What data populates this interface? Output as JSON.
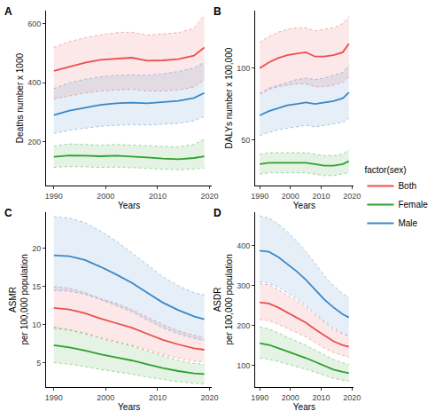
{
  "chart_data": [
    {
      "type": "line",
      "title": "A",
      "x_label": "Years",
      "y_label": "Deaths number x 1000",
      "x": [
        1990,
        1993,
        1996,
        1999,
        2002,
        2005,
        2008,
        2011,
        2014,
        2017,
        2019
      ],
      "xlim": [
        1988.5,
        2020.5
      ],
      "xticks": [
        1990,
        2000,
        2010,
        2020
      ],
      "ylim": [
        50,
        645
      ],
      "yticks": [
        200,
        400,
        600
      ],
      "grid": false,
      "series": [
        {
          "name": "Both",
          "color": "#E8504E",
          "values": [
            440,
            455,
            468,
            478,
            482,
            485,
            475,
            476,
            480,
            492,
            520
          ],
          "lower": [
            345,
            355,
            365,
            372,
            375,
            378,
            372,
            372,
            375,
            385,
            410
          ],
          "upper": [
            520,
            540,
            553,
            563,
            570,
            572,
            562,
            565,
            570,
            585,
            630
          ]
        },
        {
          "name": "Female",
          "color": "#2EA02E",
          "values": [
            148,
            153,
            152,
            150,
            152,
            150,
            146,
            142,
            140,
            144,
            150
          ],
          "lower": [
            112,
            115,
            114,
            112,
            113,
            112,
            109,
            106,
            104,
            107,
            110
          ],
          "upper": [
            185,
            192,
            190,
            188,
            190,
            188,
            185,
            182,
            182,
            190,
            208
          ]
        },
        {
          "name": "Male",
          "color": "#3A87C8",
          "values": [
            290,
            305,
            315,
            325,
            330,
            332,
            330,
            333,
            338,
            348,
            365
          ],
          "lower": [
            228,
            238,
            245,
            252,
            255,
            258,
            256,
            258,
            262,
            270,
            285
          ],
          "upper": [
            380,
            400,
            412,
            420,
            425,
            427,
            425,
            430,
            438,
            450,
            470
          ]
        }
      ]
    },
    {
      "type": "line",
      "title": "B",
      "x_label": "Years",
      "y_label": "DALYs number x 100,000",
      "legend": "right",
      "legend_title": "factor(sex)",
      "x": [
        1990,
        1993,
        1996,
        1999,
        2002,
        2005,
        2008,
        2011,
        2014,
        2017,
        2019
      ],
      "xlim": [
        1988.5,
        2020.5
      ],
      "xticks": [
        1990,
        2000,
        2010,
        2020
      ],
      "ylim": [
        18,
        140
      ],
      "yticks": [
        50,
        100
      ],
      "grid": false,
      "series": [
        {
          "name": "Both",
          "color": "#E8504E",
          "values": [
            100,
            104,
            107,
            109,
            110,
            111,
            108,
            108,
            109,
            111,
            117
          ],
          "lower": [
            82,
            85,
            87,
            88,
            89,
            89,
            87,
            87,
            88,
            90,
            94
          ],
          "upper": [
            118,
            122,
            125,
            127,
            128,
            128,
            126,
            127,
            128,
            131,
            136
          ]
        },
        {
          "name": "Female",
          "color": "#2EA02E",
          "values": [
            33,
            34,
            34,
            34,
            34,
            34,
            33,
            32,
            32,
            33,
            35
          ],
          "lower": [
            26,
            27,
            27,
            27,
            27,
            27,
            26,
            25,
            25,
            26,
            27
          ],
          "upper": [
            40,
            41,
            41,
            41,
            41,
            41,
            40,
            39,
            39,
            40,
            43
          ]
        },
        {
          "name": "Male",
          "color": "#3A87C8",
          "values": [
            67,
            70,
            72,
            74,
            75,
            76,
            75,
            76,
            77,
            79,
            83
          ],
          "lower": [
            53,
            55,
            57,
            58,
            59,
            60,
            59,
            60,
            61,
            62,
            65
          ],
          "upper": [
            82,
            86,
            88,
            90,
            92,
            93,
            92,
            93,
            95,
            97,
            102
          ]
        }
      ]
    },
    {
      "type": "line",
      "title": "C",
      "x_label": "Years",
      "y_label": "ASMR\nper 100,000 population",
      "x": [
        1990,
        1993,
        1996,
        1999,
        2002,
        2005,
        2008,
        2011,
        2014,
        2017,
        2019
      ],
      "xlim": [
        1988.5,
        2020.5
      ],
      "xticks": [
        1990,
        2000,
        2010,
        2020
      ],
      "ylim": [
        1.8,
        24.8
      ],
      "yticks": [
        5,
        10,
        15,
        20
      ],
      "grid": false,
      "series": [
        {
          "name": "Both",
          "color": "#E8504E",
          "values": [
            12.2,
            12.0,
            11.5,
            10.8,
            10.2,
            9.6,
            8.8,
            8.0,
            7.4,
            6.9,
            6.7
          ],
          "lower": [
            9.5,
            9.3,
            8.9,
            8.3,
            7.8,
            7.3,
            6.7,
            6.1,
            5.6,
            5.2,
            5.1
          ],
          "upper": [
            15.0,
            14.8,
            14.2,
            13.4,
            12.8,
            12.0,
            11.0,
            10.0,
            9.2,
            8.6,
            8.3
          ]
        },
        {
          "name": "Female",
          "color": "#2EA02E",
          "values": [
            7.3,
            7.0,
            6.6,
            6.1,
            5.7,
            5.3,
            4.8,
            4.3,
            3.9,
            3.6,
            3.5
          ],
          "lower": [
            5.0,
            4.8,
            4.5,
            4.1,
            3.8,
            3.5,
            3.1,
            2.8,
            2.5,
            2.3,
            2.2
          ],
          "upper": [
            9.7,
            9.3,
            8.8,
            8.2,
            7.7,
            7.2,
            6.5,
            5.9,
            5.3,
            4.9,
            4.8
          ]
        },
        {
          "name": "Male",
          "color": "#3A87C8",
          "values": [
            19.1,
            19.0,
            18.5,
            17.6,
            16.6,
            15.5,
            14.2,
            12.9,
            11.9,
            11.1,
            10.7
          ],
          "lower": [
            14.5,
            14.4,
            14.0,
            13.3,
            12.5,
            11.7,
            10.6,
            9.6,
            8.8,
            8.2,
            7.9
          ],
          "upper": [
            24.2,
            24.0,
            23.4,
            22.3,
            21.0,
            19.5,
            17.9,
            16.3,
            15.1,
            14.2,
            13.9
          ]
        }
      ]
    },
    {
      "type": "line",
      "title": "D",
      "x_label": "Years",
      "y_label": "ASDR\nper 100,000 population",
      "x": [
        1990,
        1993,
        1996,
        1999,
        2002,
        2005,
        2008,
        2011,
        2014,
        2017,
        2019
      ],
      "xlim": [
        1988.5,
        2020.5
      ],
      "xticks": [
        1990,
        2000,
        2010,
        2020
      ],
      "ylim": [
        45,
        485
      ],
      "yticks": [
        100,
        200,
        300,
        400
      ],
      "grid": false,
      "series": [
        {
          "name": "Both",
          "color": "#E8504E",
          "values": [
            258,
            255,
            245,
            232,
            220,
            207,
            190,
            174,
            160,
            150,
            146
          ],
          "lower": [
            215,
            212,
            203,
            192,
            182,
            171,
            157,
            143,
            132,
            124,
            120
          ],
          "upper": [
            305,
            302,
            290,
            275,
            261,
            246,
            226,
            207,
            190,
            178,
            173
          ]
        },
        {
          "name": "Female",
          "color": "#2EA02E",
          "values": [
            155,
            151,
            143,
            134,
            126,
            118,
            108,
            98,
            89,
            83,
            80
          ],
          "lower": [
            118,
            115,
            109,
            102,
            96,
            90,
            82,
            74,
            67,
            62,
            60
          ],
          "upper": [
            196,
            191,
            181,
            170,
            160,
            150,
            138,
            125,
            114,
            106,
            102
          ]
        },
        {
          "name": "Male",
          "color": "#3A87C8",
          "values": [
            388,
            385,
            372,
            355,
            336,
            315,
            290,
            265,
            245,
            228,
            220
          ],
          "lower": [
            310,
            306,
            296,
            282,
            267,
            250,
            230,
            210,
            194,
            180,
            174
          ],
          "upper": [
            475,
            470,
            455,
            435,
            412,
            386,
            356,
            325,
            300,
            280,
            270
          ]
        }
      ]
    }
  ]
}
